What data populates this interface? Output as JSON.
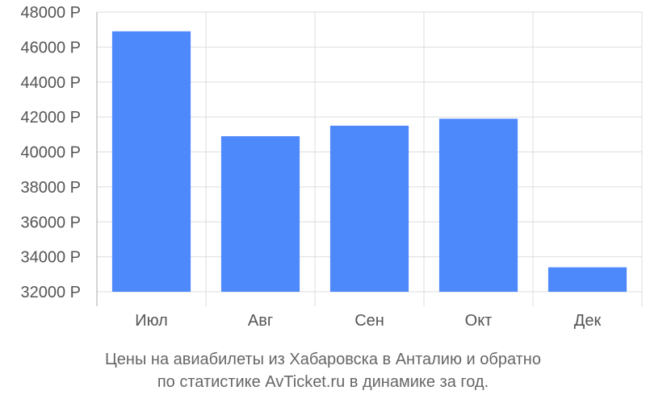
{
  "chart_data": {
    "type": "bar",
    "categories": [
      "Июл",
      "Авг",
      "Сен",
      "Окт",
      "Дек"
    ],
    "values": [
      46900,
      40900,
      41500,
      41900,
      33400
    ],
    "ylim": [
      32000,
      48000
    ],
    "yticks": [
      32000,
      34000,
      36000,
      38000,
      40000,
      42000,
      44000,
      46000,
      48000
    ],
    "tick_suffix": " Р",
    "grid": true,
    "bar_color": "#4e89fc",
    "caption_line1": "Цены на авиабилеты из Хабаровска в Анталию и обратно",
    "caption_line2": "по статистике AvTicket.ru в динамике за год."
  }
}
